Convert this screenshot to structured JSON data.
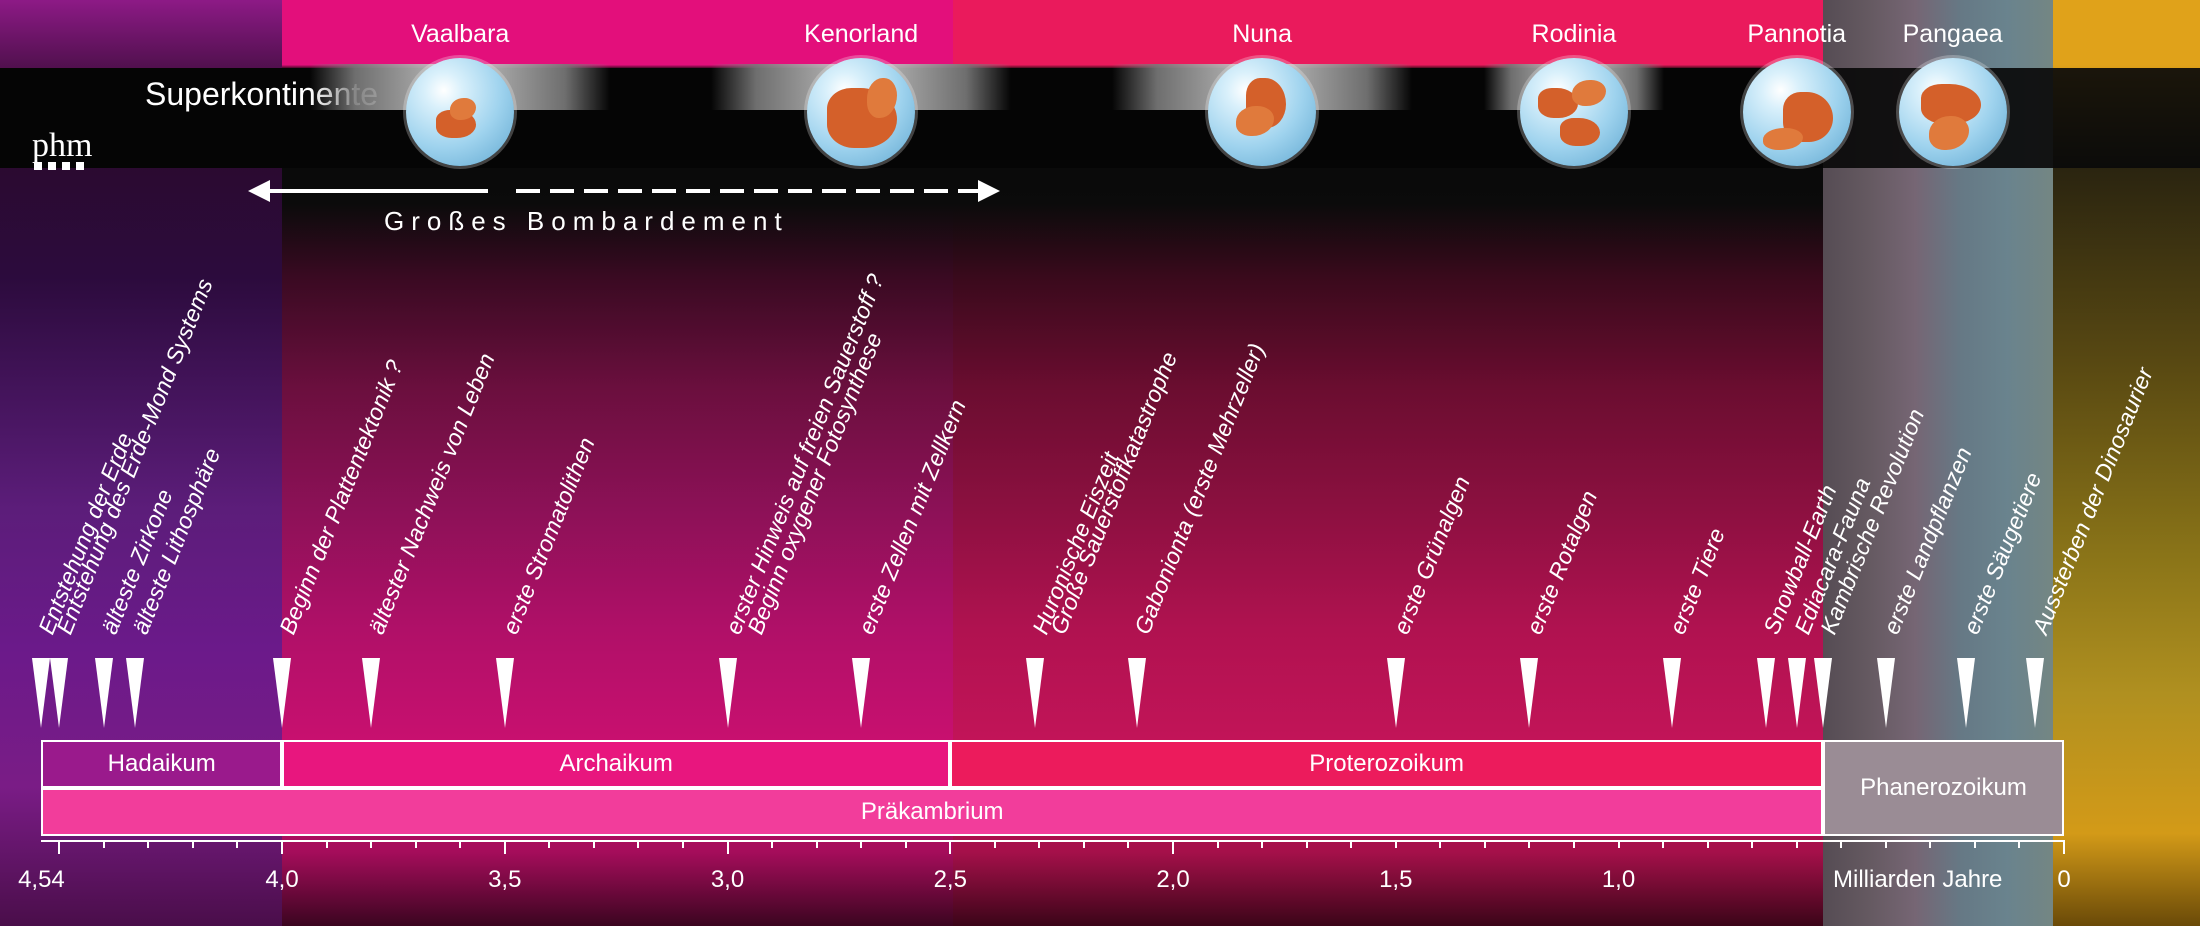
{
  "title": "Superkontinente",
  "logo_text": "phm",
  "bombardment_label": "Großes Bombardement",
  "axis_unit_label": "Milliarden Jahre",
  "axis_ticks": [
    {
      "value": 4.54,
      "label": "4,54"
    },
    {
      "value": 4.0,
      "label": "4,0"
    },
    {
      "value": 3.5,
      "label": "3,5"
    },
    {
      "value": 3.0,
      "label": "3,0"
    },
    {
      "value": 2.5,
      "label": "2,5"
    },
    {
      "value": 2.0,
      "label": "2,0"
    },
    {
      "value": 1.5,
      "label": "1,5"
    },
    {
      "value": 1.0,
      "label": "1,0"
    },
    {
      "value": 0.0,
      "label": "0"
    }
  ],
  "supercontinents": [
    {
      "name": "Vaalbara",
      "age": 3.6
    },
    {
      "name": "Kenorland",
      "age": 2.7
    },
    {
      "name": "Nuna",
      "age": 1.8
    },
    {
      "name": "Rodinia",
      "age": 1.1
    },
    {
      "name": "Pannotia",
      "age": 0.6
    },
    {
      "name": "Pangaea",
      "age": 0.25
    }
  ],
  "eons": [
    {
      "name": "Hadaikum",
      "start": 4.54,
      "end": 4.0,
      "color": "#9a1a8c"
    },
    {
      "name": "Archaikum",
      "start": 4.0,
      "end": 2.5,
      "color": "#e8167e"
    },
    {
      "name": "Proterozoikum",
      "start": 2.5,
      "end": 0.541,
      "color": "#ec1b5c"
    },
    {
      "name": "Phanerozoikum",
      "start": 0.541,
      "end": 0.0,
      "color": "#9a8c95"
    }
  ],
  "supereon": {
    "name": "Präkambrium",
    "start": 4.54,
    "end": 0.541,
    "color": "#f23d9b"
  },
  "events": [
    {
      "text": "Entstehung der Erde",
      "age": 4.54
    },
    {
      "text": "Entstehung des Erde-Mond Systems",
      "age": 4.5
    },
    {
      "text": "älteste Zirkone",
      "age": 4.4
    },
    {
      "text": "älteste Lithosphäre",
      "age": 4.33
    },
    {
      "text": "Beginn der Plattentektonik ?",
      "age": 4.0
    },
    {
      "text": "ältester Nachweis von Leben",
      "age": 3.8
    },
    {
      "text": "erste Stromatolithen",
      "age": 3.5
    },
    {
      "text": "erster Hinweis auf freien Sauerstoff ?",
      "age": 3.0
    },
    {
      "text": "Beginn oxygener Fotosynthese",
      "age": 2.95
    },
    {
      "text": "erste Zellen mit Zellkern",
      "age": 2.7
    },
    {
      "text": "Huronische Eiszeit",
      "age": 2.31
    },
    {
      "text": "Große Sauerstoffkatastrophe",
      "age": 2.27
    },
    {
      "text": "Gabonionta (erste Mehrzeller)",
      "age": 2.08
    },
    {
      "text": "erste Grünalgen",
      "age": 1.5
    },
    {
      "text": "erste Rotalgen",
      "age": 1.2
    },
    {
      "text": "erste Tiere",
      "age": 0.88
    },
    {
      "text": "Snowball-Earth",
      "age": 0.67
    },
    {
      "text": "Ediacara-Fauna",
      "age": 0.6
    },
    {
      "text": "Kambrische Revolution",
      "age": 0.54
    },
    {
      "text": "erste Landpflanzen",
      "age": 0.4
    },
    {
      "text": "erste Säugetiere",
      "age": 0.22
    },
    {
      "text": "Aussterben der Dinosaurier",
      "age": 0.066
    }
  ],
  "marker_ages": [
    4.54,
    4.5,
    4.4,
    4.33,
    4.0,
    3.8,
    3.5,
    3.0,
    2.7,
    2.31,
    2.08,
    1.5,
    1.2,
    0.88,
    0.67,
    0.6,
    0.54,
    0.4,
    0.22,
    0.066
  ]
}
